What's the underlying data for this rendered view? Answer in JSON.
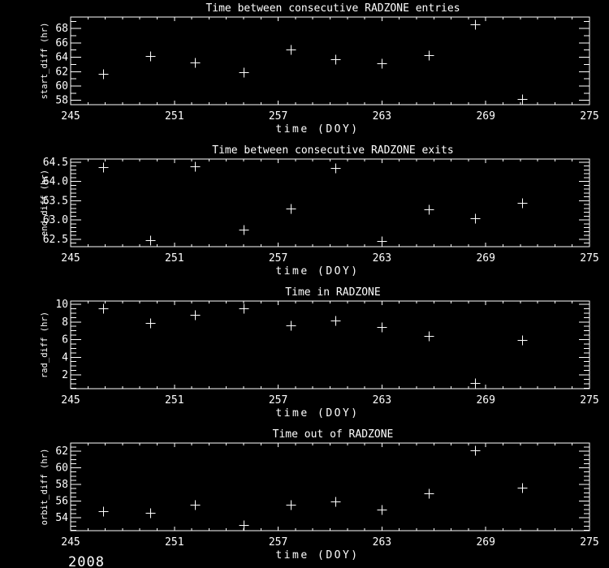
{
  "page": {
    "background_color": "#000000",
    "foreground_color": "#ffffff",
    "year_label": "2008"
  },
  "chart_data": [
    {
      "type": "scatter",
      "title": "Time between consecutive RADZONE entries",
      "xlabel": "time (DOY)",
      "ylabel": "start_diff (hr)",
      "marker": "plus",
      "grid": false,
      "xlim": [
        245,
        275
      ],
      "ylim": [
        57.4,
        69.6
      ],
      "x_tick_values": [
        245,
        251,
        257,
        263,
        269,
        275
      ],
      "x_tick_labels": [
        "245",
        "251",
        "257",
        "263",
        "269",
        "275"
      ],
      "x_minor_step": 1,
      "y_tick_values": [
        58,
        60,
        62,
        64,
        66,
        68
      ],
      "y_tick_labels": [
        "58",
        "60",
        "62",
        "64",
        "66",
        "68"
      ],
      "y_minor_step": 1,
      "x": [
        246.9,
        249.6,
        252.2,
        255.0,
        257.7,
        260.3,
        263.0,
        265.7,
        268.4,
        271.1
      ],
      "y": [
        61.7,
        64.2,
        63.3,
        61.9,
        65.1,
        63.7,
        63.2,
        64.3,
        68.6,
        58.2
      ]
    },
    {
      "type": "scatter",
      "title": "Time between consecutive RADZONE exits",
      "xlabel": "time (DOY)",
      "ylabel": "end_diff (hr)",
      "marker": "plus",
      "grid": false,
      "xlim": [
        245,
        275
      ],
      "ylim": [
        62.31,
        64.58
      ],
      "x_tick_values": [
        245,
        251,
        257,
        263,
        269,
        275
      ],
      "x_tick_labels": [
        "245",
        "251",
        "257",
        "263",
        "269",
        "275"
      ],
      "x_minor_step": 1,
      "y_tick_values": [
        62.5,
        63.0,
        63.5,
        64.0,
        64.5
      ],
      "y_tick_labels": [
        "62.5",
        "63.0",
        "63.5",
        "64.0",
        "64.5"
      ],
      "y_minor_step": 0.1,
      "x": [
        246.9,
        249.6,
        252.2,
        255.0,
        257.7,
        260.3,
        263.0,
        265.7,
        268.4,
        271.1
      ],
      "y": [
        64.37,
        62.48,
        64.39,
        62.75,
        63.3,
        64.35,
        62.46,
        63.28,
        63.05,
        63.45
      ]
    },
    {
      "type": "scatter",
      "title": "Time in RADZONE",
      "xlabel": "time (DOY)",
      "ylabel": "rad_diff (hr)",
      "marker": "plus",
      "grid": false,
      "xlim": [
        245,
        275
      ],
      "ylim": [
        0.44,
        10.37
      ],
      "x_tick_values": [
        245,
        251,
        257,
        263,
        269,
        275
      ],
      "x_tick_labels": [
        "245",
        "251",
        "257",
        "263",
        "269",
        "275"
      ],
      "x_minor_step": 1,
      "y_tick_values": [
        2,
        4,
        6,
        8,
        10
      ],
      "y_tick_labels": [
        "2",
        "4",
        "6",
        "8",
        "10"
      ],
      "y_minor_step": 0.5,
      "x": [
        246.9,
        249.6,
        252.2,
        255.0,
        257.7,
        260.3,
        263.0,
        265.7,
        268.4,
        271.1
      ],
      "y": [
        9.5,
        7.9,
        8.8,
        9.5,
        7.6,
        8.2,
        7.4,
        6.4,
        1.1,
        6.0
      ]
    },
    {
      "type": "scatter",
      "title": "Time out of RADZONE",
      "xlabel": "time (DOY)",
      "ylabel": "orbit_diff (hr)",
      "marker": "plus",
      "grid": false,
      "xlim": [
        245,
        275
      ],
      "ylim": [
        52.44,
        62.98
      ],
      "x_tick_values": [
        245,
        251,
        257,
        263,
        269,
        275
      ],
      "x_tick_labels": [
        "245",
        "251",
        "257",
        "263",
        "269",
        "275"
      ],
      "x_minor_step": 1,
      "y_tick_values": [
        54,
        56,
        58,
        60,
        62
      ],
      "y_tick_labels": [
        "54",
        "56",
        "58",
        "60",
        "62"
      ],
      "y_minor_step": 0.5,
      "x": [
        246.9,
        249.6,
        252.2,
        255.0,
        257.7,
        260.3,
        263.0,
        265.7,
        268.4,
        271.1
      ],
      "y": [
        54.8,
        54.6,
        55.6,
        53.1,
        55.6,
        56.0,
        55.0,
        56.9,
        62.1,
        57.6
      ]
    }
  ]
}
